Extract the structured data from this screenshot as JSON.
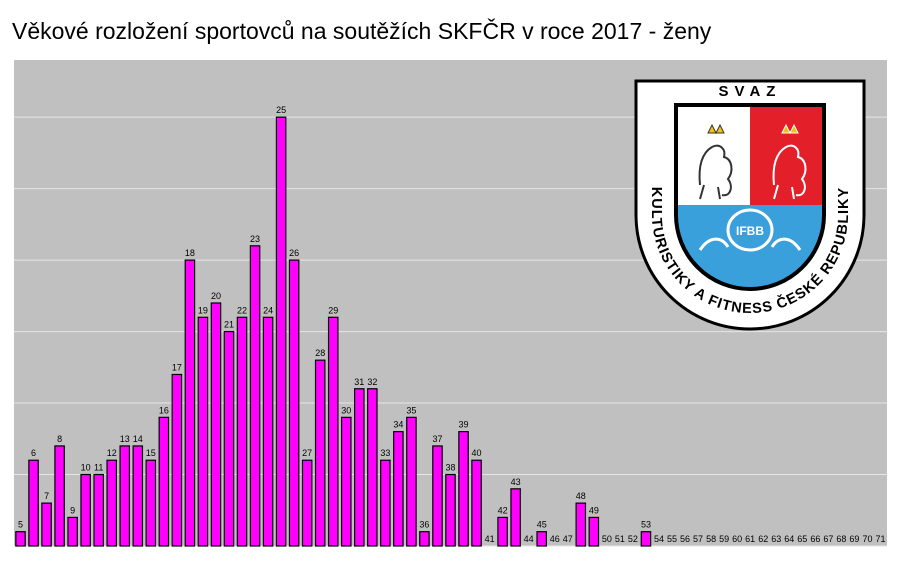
{
  "title": "Věkové rozložení sportovců na soutěžích SKFČR v roce 2017 - ženy",
  "colors": {
    "bar": "#ff00ff",
    "plot_bg": "#c0c0c0",
    "grid": "#e6e6e6"
  },
  "logo": {
    "top_text": "SVAZ",
    "arc_text": "KULTURISTIKY A FITNESS ČESKÉ REPUBLIKY",
    "emblem_text": "IFBB",
    "colors": {
      "outer": "#ffffff",
      "rim": "#000000",
      "white_field": "#ffffff",
      "red_field": "#e3202a",
      "blue_field": "#3aa0dc"
    }
  },
  "chart_data": {
    "type": "bar",
    "title": "Věkové rozložení sportovců na soutěžích SKFČR v roce 2017 - ženy",
    "xlabel": "",
    "ylabel": "",
    "ylim": [
      0,
      34
    ],
    "grid": true,
    "categories": [
      "5",
      "6",
      "7",
      "8",
      "9",
      "10",
      "11",
      "12",
      "13",
      "14",
      "15",
      "16",
      "17",
      "18",
      "19",
      "20",
      "21",
      "22",
      "23",
      "24",
      "25",
      "26",
      "27",
      "28",
      "29",
      "30",
      "31",
      "32",
      "33",
      "34",
      "35",
      "36",
      "37",
      "38",
      "39",
      "40",
      "41",
      "42",
      "43",
      "44",
      "45",
      "46",
      "47",
      "48",
      "49",
      "50",
      "51",
      "52",
      "53",
      "54",
      "55",
      "56",
      "57",
      "58",
      "59",
      "60",
      "61",
      "62",
      "63",
      "64",
      "65",
      "66",
      "67",
      "68",
      "69",
      "70",
      "71"
    ],
    "values": [
      1,
      6,
      3,
      7,
      2,
      5,
      5,
      6,
      7,
      7,
      6,
      9,
      12,
      20,
      16,
      17,
      15,
      16,
      21,
      16,
      30,
      20,
      6,
      13,
      16,
      9,
      11,
      11,
      6,
      8,
      9,
      1,
      7,
      5,
      8,
      6,
      0,
      2,
      4,
      0,
      1,
      0,
      0,
      3,
      2,
      0,
      0,
      0,
      1,
      0,
      0,
      0,
      0,
      0,
      0,
      0,
      0,
      0,
      0,
      0,
      0,
      0,
      0,
      0,
      0,
      0,
      0
    ]
  }
}
